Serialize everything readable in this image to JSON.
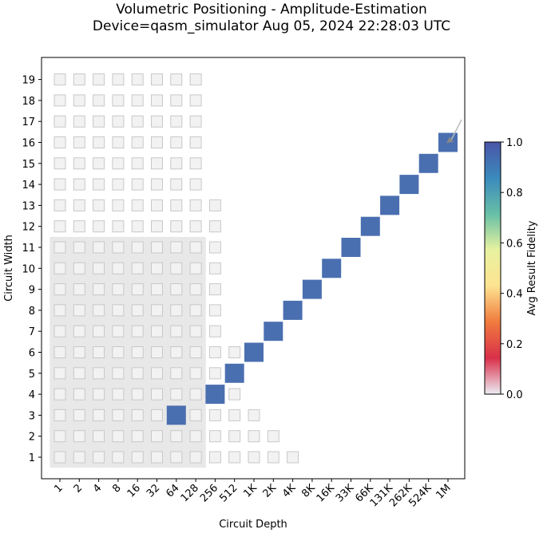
{
  "title_line1": "Volumetric Positioning - Amplitude-Estimation",
  "title_line2": "Device=qasm_simulator  Aug 05, 2024 22:28:03 UTC",
  "colors": {
    "fidelity_high": "#4a6fb0",
    "grid_cell_fill": "#f2f2f2",
    "grid_cell_stroke": "#c8c8c8",
    "qv_region": "#e8e8e8",
    "arrow": "#bbbbbb"
  },
  "chart_data": {
    "type": "heatmap",
    "xlabel": "Circuit Depth",
    "ylabel": "Circuit Width",
    "x_ticks": [
      "1",
      "2",
      "4",
      "8",
      "16",
      "32",
      "64",
      "128",
      "256",
      "512",
      "1K",
      "2K",
      "4K",
      "8K",
      "16K",
      "33K",
      "66K",
      "131K",
      "262K",
      "524K",
      "1M"
    ],
    "y_ticks": [
      "1",
      "2",
      "3",
      "4",
      "5",
      "6",
      "7",
      "8",
      "9",
      "10",
      "11",
      "12",
      "13",
      "14",
      "15",
      "16",
      "17",
      "18",
      "19"
    ],
    "x_scale": "log2",
    "grid": false,
    "quantum_volume_region": {
      "max_depth": "128",
      "max_width": 11
    },
    "available_cells_max_depth_by_width": [
      {
        "width": 1,
        "max_depth": "4K"
      },
      {
        "width": 2,
        "max_depth": "2K"
      },
      {
        "width": 3,
        "max_depth": "1K"
      },
      {
        "width": 4,
        "max_depth": "512"
      },
      {
        "width": 5,
        "max_depth": "512"
      },
      {
        "width": 6,
        "max_depth": "512"
      },
      {
        "width": 7,
        "max_depth": "256"
      },
      {
        "width": 8,
        "max_depth": "256"
      },
      {
        "width": 9,
        "max_depth": "256"
      },
      {
        "width": 10,
        "max_depth": "256"
      },
      {
        "width": 11,
        "max_depth": "256"
      },
      {
        "width": 12,
        "max_depth": "256"
      },
      {
        "width": 13,
        "max_depth": "256"
      },
      {
        "width": 14,
        "max_depth": "128"
      },
      {
        "width": 15,
        "max_depth": "128"
      },
      {
        "width": 16,
        "max_depth": "128"
      },
      {
        "width": 17,
        "max_depth": "128"
      },
      {
        "width": 18,
        "max_depth": "128"
      },
      {
        "width": 19,
        "max_depth": "128"
      }
    ],
    "results": [
      {
        "width": 3,
        "depth": "64",
        "avg_result_fidelity": 1.0
      },
      {
        "width": 4,
        "depth": "256",
        "avg_result_fidelity": 1.0
      },
      {
        "width": 5,
        "depth": "512",
        "avg_result_fidelity": 1.0
      },
      {
        "width": 6,
        "depth": "1K",
        "avg_result_fidelity": 1.0
      },
      {
        "width": 7,
        "depth": "2K",
        "avg_result_fidelity": 1.0
      },
      {
        "width": 8,
        "depth": "4K",
        "avg_result_fidelity": 1.0
      },
      {
        "width": 9,
        "depth": "8K",
        "avg_result_fidelity": 1.0
      },
      {
        "width": 10,
        "depth": "16K",
        "avg_result_fidelity": 1.0
      },
      {
        "width": 11,
        "depth": "33K",
        "avg_result_fidelity": 1.0
      },
      {
        "width": 12,
        "depth": "66K",
        "avg_result_fidelity": 1.0
      },
      {
        "width": 13,
        "depth": "131K",
        "avg_result_fidelity": 1.0
      },
      {
        "width": 14,
        "depth": "262K",
        "avg_result_fidelity": 1.0
      },
      {
        "width": 15,
        "depth": "524K",
        "avg_result_fidelity": 1.0
      },
      {
        "width": 16,
        "depth": "1M",
        "avg_result_fidelity": 1.0
      }
    ],
    "colorbar": {
      "label": "Avg Result Fidelity",
      "ticks": [
        "0.0",
        "0.2",
        "0.4",
        "0.6",
        "0.8",
        "1.0"
      ],
      "range": [
        0,
        1
      ],
      "colormap": [
        "#ececf4",
        "#d9304a",
        "#f07a3d",
        "#fde391",
        "#e8f2a0",
        "#67bfa6",
        "#3b8abd",
        "#4a55a8"
      ]
    }
  }
}
